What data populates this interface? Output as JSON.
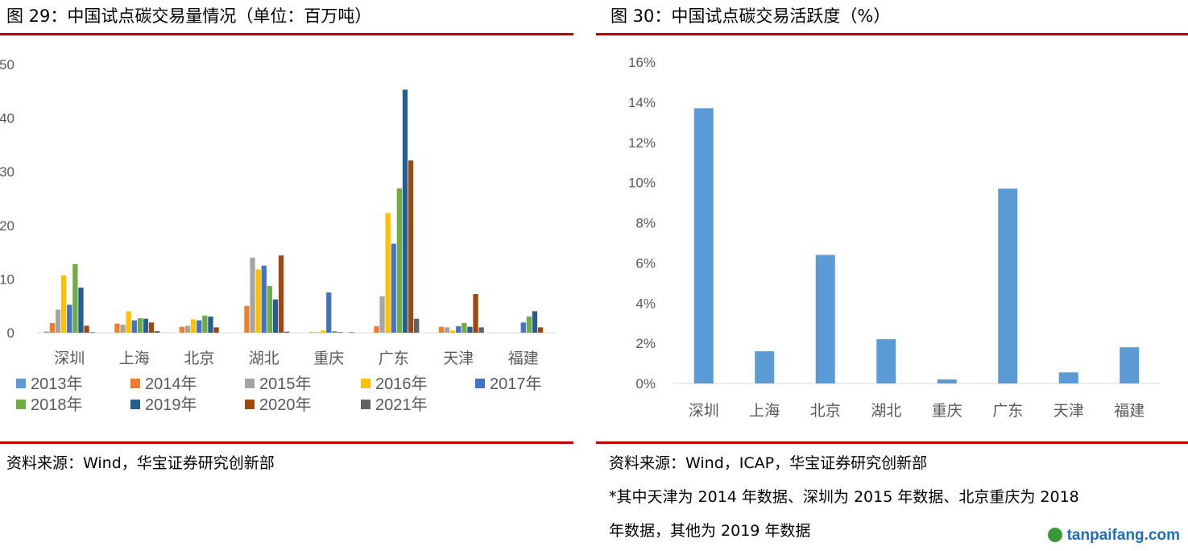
{
  "left": {
    "title": "图 29：中国试点碳交易量情况（单位：百万吨）",
    "source": "资料来源：Wind，华宝证券研究创新部"
  },
  "right": {
    "title": "图 30：中国试点碳交易活跃度（%）",
    "source": "资料来源：Wind，ICAP，华宝证券研究创新部",
    "note_line1": "*其中天津为 2014 年数据、深圳为 2015 年数据、北京重庆为 2018",
    "note_line2": "年数据，其他为 2019 年数据"
  },
  "watermark": "tanpaifang.com",
  "colors": {
    "rule": "#c00000",
    "series": [
      "#5b9bd5",
      "#ed7d31",
      "#a5a5a5",
      "#ffc000",
      "#4472c4",
      "#70ad47",
      "#255e91",
      "#9e480e",
      "#636363"
    ]
  },
  "chart_data": [
    {
      "type": "bar",
      "ylim": [
        0,
        50
      ],
      "yticks": [
        "0",
        "10",
        "20",
        "30",
        "40",
        "50"
      ],
      "categories": [
        "深圳",
        "上海",
        "北京",
        "湖北",
        "重庆",
        "广东",
        "天津",
        "福建"
      ],
      "series": [
        {
          "name": "2013年",
          "values": [
            0.2,
            0,
            0,
            0,
            0,
            0,
            0,
            0
          ]
        },
        {
          "name": "2014年",
          "values": [
            1.8,
            1.7,
            1.1,
            5.0,
            0.1,
            1.2,
            1.1,
            0
          ]
        },
        {
          "name": "2015年",
          "values": [
            4.3,
            1.5,
            1.3,
            14.0,
            0.1,
            6.8,
            1.0,
            0
          ]
        },
        {
          "name": "2016年",
          "values": [
            10.7,
            4.0,
            2.5,
            11.8,
            0.4,
            22.3,
            0.4,
            0
          ]
        },
        {
          "name": "2017年",
          "values": [
            5.2,
            2.3,
            2.3,
            12.5,
            7.5,
            16.6,
            1.2,
            1.9
          ]
        },
        {
          "name": "2018年",
          "values": [
            12.8,
            2.7,
            3.2,
            8.7,
            0.3,
            26.9,
            1.8,
            3.0
          ]
        },
        {
          "name": "2019年",
          "values": [
            8.4,
            2.6,
            3.0,
            6.2,
            0.1,
            45.3,
            1.1,
            4.0
          ]
        },
        {
          "name": "2020年",
          "values": [
            1.3,
            1.9,
            1.0,
            14.4,
            0,
            32.1,
            7.2,
            1.0
          ]
        },
        {
          "name": "2021年",
          "values": [
            0.1,
            0.3,
            0,
            0.2,
            0.1,
            2.6,
            1.0,
            0
          ]
        }
      ]
    },
    {
      "type": "bar",
      "ylim": [
        0,
        16
      ],
      "yticks": [
        "0%",
        "2%",
        "4%",
        "6%",
        "8%",
        "10%",
        "12%",
        "14%",
        "16%"
      ],
      "categories": [
        "深圳",
        "上海",
        "北京",
        "湖北",
        "重庆",
        "广东",
        "天津",
        "福建"
      ],
      "values": [
        13.7,
        1.6,
        6.4,
        2.2,
        0.2,
        9.7,
        0.55,
        1.8
      ]
    }
  ]
}
